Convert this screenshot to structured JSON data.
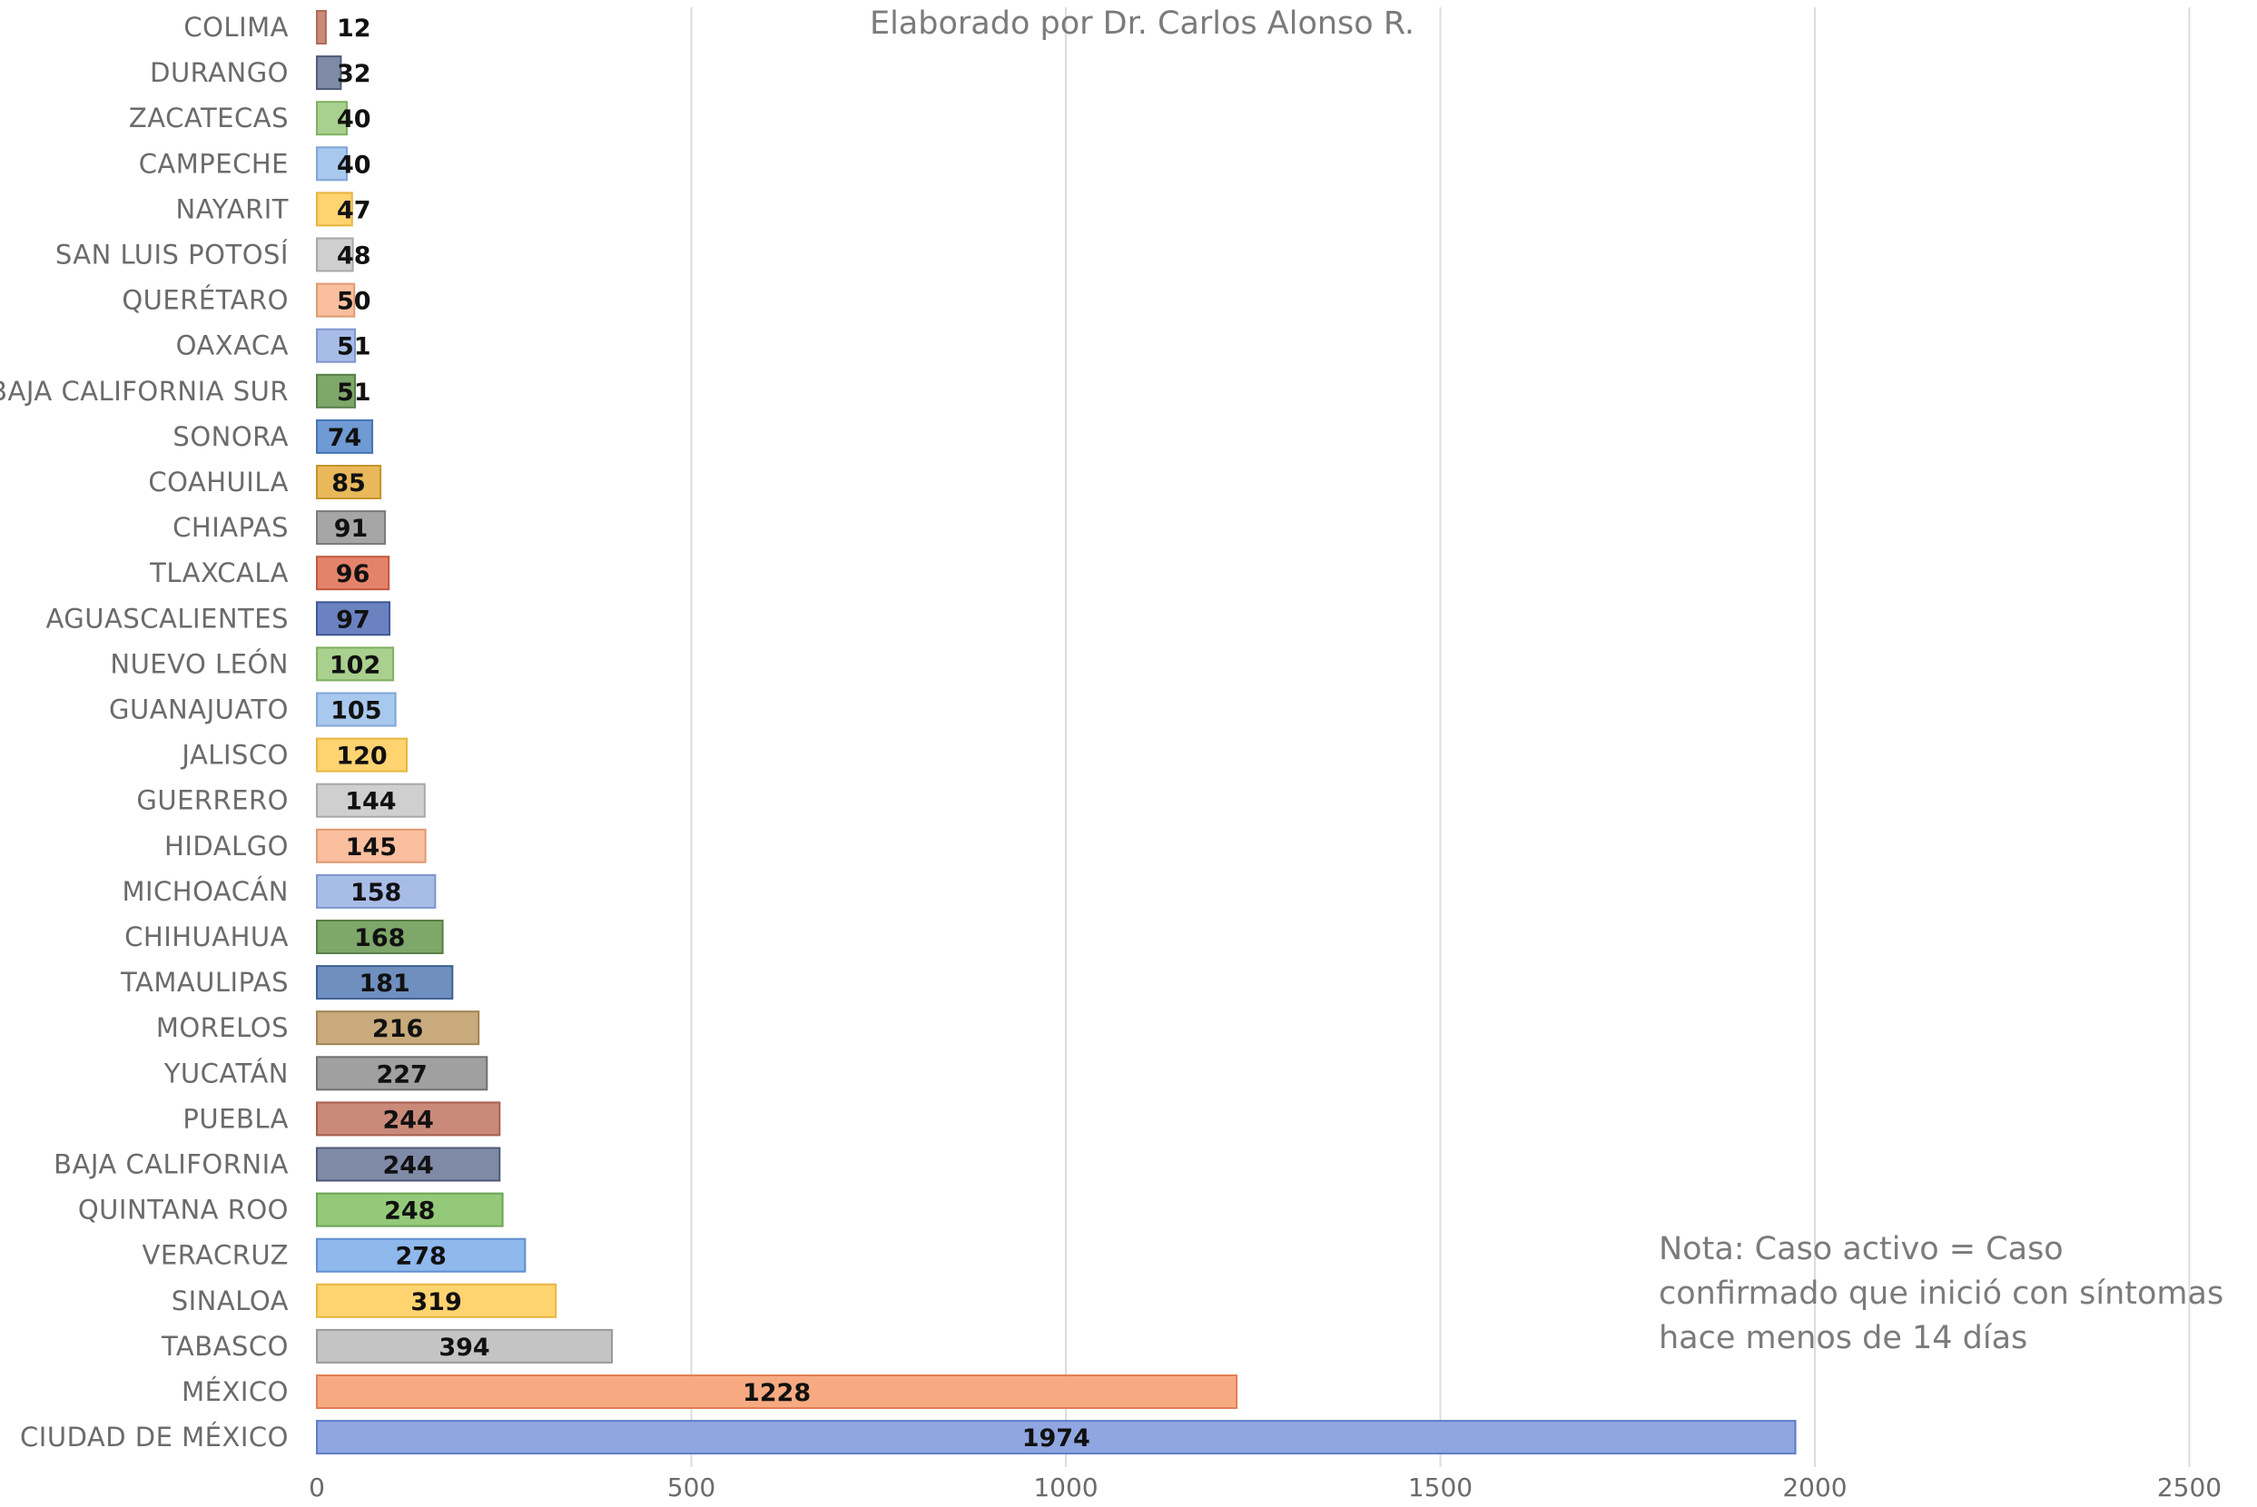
{
  "chart_data": {
    "type": "bar",
    "orientation": "horizontal",
    "subtitle": "Elaborado por Dr. Carlos Alonso R.",
    "note": "Nota: Caso activo = Caso confirmado que inició con síntomas hace menos de 14 días",
    "categories": [
      "COLIMA",
      "DURANGO",
      "ZACATECAS",
      "CAMPECHE",
      "NAYARIT",
      "SAN LUIS POTOSÍ",
      "QUERÉTARO",
      "OAXACA",
      "BAJA CALIFORNIA SUR",
      "SONORA",
      "COAHUILA",
      "CHIAPAS",
      "TLAXCALA",
      "AGUASCALIENTES",
      "NUEVO LEÓN",
      "GUANAJUATO",
      "JALISCO",
      "GUERRERO",
      "HIDALGO",
      "MICHOACÁN",
      "CHIHUAHUA",
      "TAMAULIPAS",
      "MORELOS",
      "YUCATÁN",
      "PUEBLA",
      "BAJA CALIFORNIA",
      "QUINTANA ROO",
      "VERACRUZ",
      "SINALOA",
      "TABASCO",
      "MÉXICO",
      "CIUDAD DE MÉXICO"
    ],
    "values": [
      12,
      32,
      40,
      40,
      47,
      48,
      50,
      51,
      51,
      74,
      85,
      91,
      96,
      97,
      102,
      105,
      120,
      144,
      145,
      158,
      168,
      181,
      216,
      227,
      244,
      244,
      248,
      278,
      319,
      394,
      1228,
      1974
    ],
    "value_labels": [
      "12",
      "32",
      "40",
      "40",
      "47",
      "48",
      "50",
      "51",
      "51",
      "74",
      "85",
      "91",
      "96",
      "97",
      "102",
      "105",
      "120",
      "144",
      "145",
      "158",
      "168",
      "181",
      "216",
      "227",
      "244",
      "244",
      "248",
      "278",
      "319",
      "394",
      "1228",
      "1974"
    ],
    "colors": [
      "#c98a7a",
      "#7f8aa6",
      "#a9d08e",
      "#a9c8ee",
      "#ffd470",
      "#cfcfcf",
      "#f9bf9e",
      "#a8bce8",
      "#7ea76a",
      "#6f9ad4",
      "#e8b85a",
      "#a6a6a6",
      "#e5836a",
      "#6b82c0",
      "#a9d08e",
      "#a9c8ee",
      "#ffd470",
      "#cfcfcf",
      "#f9bf9e",
      "#a8bce8",
      "#7ea76a",
      "#6f8fbf",
      "#c9aa7c",
      "#a0a0a0",
      "#c98a7a",
      "#7f8aa6",
      "#94c97a",
      "#8fb8ec",
      "#ffd470",
      "#c4c4c4",
      "#f7aa82",
      "#8fa6e0"
    ],
    "border_colors": [
      "#b06a57",
      "#4f5a78",
      "#7fb05f",
      "#7fa6d6",
      "#e7b53e",
      "#a8a8a8",
      "#e09a73",
      "#7f95cc",
      "#587f47",
      "#4674b4",
      "#c4942c",
      "#7a7a7a",
      "#c0583f",
      "#3f5596",
      "#7fb05f",
      "#7fa6d6",
      "#e7b53e",
      "#a8a8a8",
      "#e09a73",
      "#7f95cc",
      "#587f47",
      "#3f6094",
      "#a08355",
      "#707070",
      "#a6604c",
      "#4f5a78",
      "#6ca451",
      "#5f8fd0",
      "#e7b53e",
      "#9a9a9a",
      "#e08054",
      "#5f7bc8"
    ],
    "x_ticks": [
      "0",
      "500",
      "1000",
      "1500",
      "2000",
      "2500"
    ],
    "xlim": [
      0,
      2500
    ],
    "grid": "vertical"
  }
}
